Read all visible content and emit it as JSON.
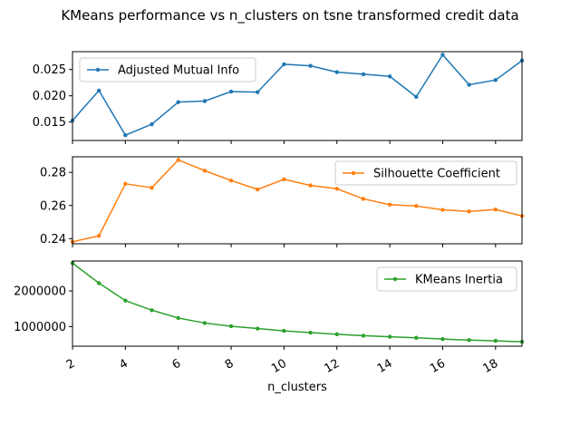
{
  "figure": {
    "title": "KMeans performance vs n_clusters on tsne transformed credit data",
    "xlabel": "n_clusters"
  },
  "chart_data": [
    {
      "type": "line",
      "title": "",
      "xlabel": "n_clusters",
      "ylabel": "",
      "xlim": [
        2,
        19
      ],
      "ylim": [
        0.0115,
        0.0284
      ],
      "yticks": [
        0.015,
        0.02,
        0.025
      ],
      "ytick_labels": [
        "0.015",
        "0.020",
        "0.025"
      ],
      "xticks": [
        2,
        4,
        6,
        8,
        10,
        12,
        14,
        16,
        18
      ],
      "xtick_labels": [
        "2",
        "4",
        "6",
        "8",
        "10",
        "12",
        "14",
        "16",
        "18"
      ],
      "show_xtick_labels": false,
      "legend_position": "upper-left",
      "grid": false,
      "series": [
        {
          "name": "Adjusted Mutual Info",
          "color": "#1f77b4",
          "x": [
            2,
            3,
            4,
            5,
            6,
            7,
            8,
            9,
            10,
            11,
            12,
            13,
            14,
            15,
            16,
            17,
            18,
            19
          ],
          "values": [
            0.0153,
            0.021,
            0.0125,
            0.0146,
            0.0188,
            0.019,
            0.0208,
            0.0207,
            0.026,
            0.0257,
            0.0245,
            0.0241,
            0.0237,
            0.0198,
            0.0278,
            0.0221,
            0.023,
            0.0267
          ]
        }
      ]
    },
    {
      "type": "line",
      "title": "",
      "xlabel": "n_clusters",
      "ylabel": "",
      "xlim": [
        2,
        19
      ],
      "ylim": [
        0.2369,
        0.2894
      ],
      "yticks": [
        0.24,
        0.26,
        0.28
      ],
      "ytick_labels": [
        "0.24",
        "0.26",
        "0.28"
      ],
      "xticks": [
        2,
        4,
        6,
        8,
        10,
        12,
        14,
        16,
        18
      ],
      "xtick_labels": [
        "2",
        "4",
        "6",
        "8",
        "10",
        "12",
        "14",
        "16",
        "18"
      ],
      "show_xtick_labels": false,
      "legend_position": "upper-right",
      "grid": false,
      "series": [
        {
          "name": "Silhouette Coefficient",
          "color": "#ff7f0e",
          "x": [
            2,
            3,
            4,
            5,
            6,
            7,
            8,
            9,
            10,
            11,
            12,
            13,
            14,
            15,
            16,
            17,
            18,
            19
          ],
          "values": [
            0.2381,
            0.2417,
            0.2731,
            0.2707,
            0.2875,
            0.281,
            0.2751,
            0.2697,
            0.2758,
            0.2721,
            0.2701,
            0.264,
            0.2605,
            0.2597,
            0.2574,
            0.2564,
            0.2576,
            0.2537
          ]
        }
      ]
    },
    {
      "type": "line",
      "title": "",
      "xlabel": "n_clusters",
      "ylabel": "",
      "xlim": [
        2,
        19
      ],
      "ylim": [
        450000,
        2840000
      ],
      "yticks": [
        1000000,
        2000000
      ],
      "ytick_labels": [
        "1000000",
        "2000000"
      ],
      "xticks": [
        2,
        4,
        6,
        8,
        10,
        12,
        14,
        16,
        18
      ],
      "xtick_labels": [
        "2",
        "4",
        "6",
        "8",
        "10",
        "12",
        "14",
        "16",
        "18"
      ],
      "show_xtick_labels": true,
      "legend_position": "upper-right",
      "grid": false,
      "series": [
        {
          "name": "KMeans Inertia",
          "color": "#2ca02c",
          "x": [
            2,
            3,
            4,
            5,
            6,
            7,
            8,
            9,
            10,
            11,
            12,
            13,
            14,
            15,
            16,
            17,
            18,
            19
          ],
          "values": [
            2780000,
            2220000,
            1730000,
            1460000,
            1240000,
            1100000,
            1010000,
            945000,
            880000,
            830000,
            785000,
            745000,
            715000,
            685000,
            650000,
            620000,
            600000,
            575000
          ]
        }
      ]
    }
  ]
}
